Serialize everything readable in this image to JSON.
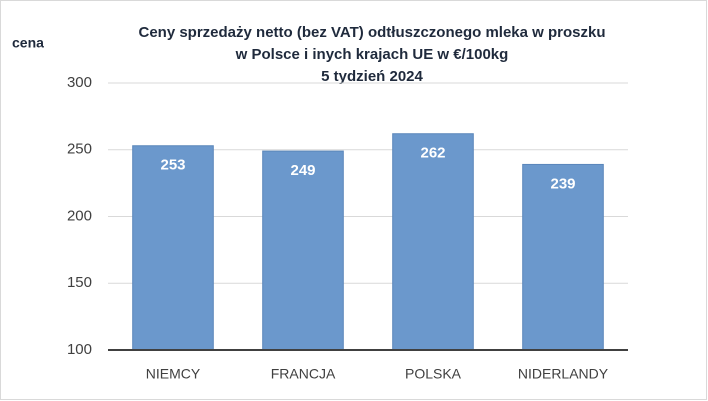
{
  "chart_data": {
    "type": "bar",
    "title": [
      "Ceny sprzedaży netto  (bez VAT) odtłuszczonego mleka w proszku",
      "w Polsce i inych krajach UE w €/100kg",
      "5  tydzień 2024"
    ],
    "y_label": "cena",
    "categories": [
      "NIEMCY",
      "FRANCJA",
      "POLSKA",
      "NIDERLANDY"
    ],
    "values": [
      253,
      249,
      262,
      239
    ],
    "color": "#6b98cc",
    "ylim": [
      100,
      300
    ],
    "yticks": [
      100,
      150,
      200,
      250,
      300
    ],
    "grid": true
  }
}
